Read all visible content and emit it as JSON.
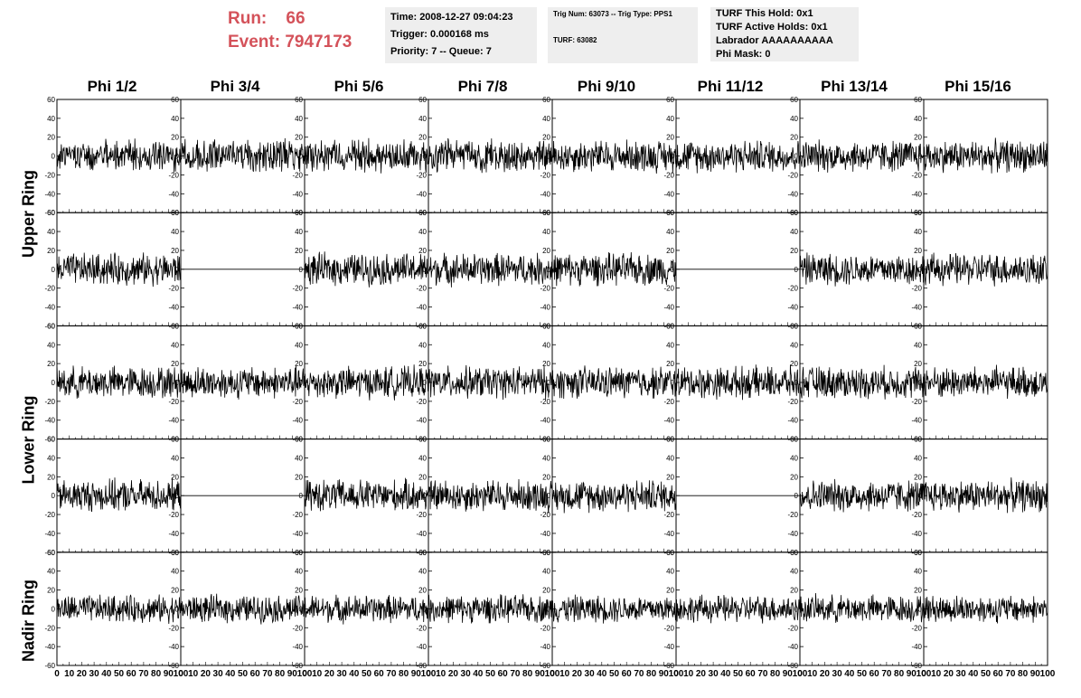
{
  "header": {
    "run_label": "Run:",
    "run_value": "66",
    "event_label": "Event:",
    "event_value": "7947173"
  },
  "info_panel_1": {
    "time": "Time: 2008-12-27 09:04:23",
    "trigger": "Trigger: 0.000168 ms",
    "priority": "Priority: 7 -- Queue: 7"
  },
  "info_panel_2": {
    "trig": "Trig Num: 63073 -- Trig Type: PPS1",
    "turf": "TURF: 63082"
  },
  "info_panel_3": {
    "hold": "TURF This Hold: 0x1",
    "active": "TURF Active Holds: 0x1",
    "labrador": "Labrador AAAAAAAAAA",
    "phimask": "Phi Mask: 0"
  },
  "columns": [
    "Phi 1/2",
    "Phi 3/4",
    "Phi 5/6",
    "Phi 7/8",
    "Phi 9/10",
    "Phi 11/12",
    "Phi 13/14",
    "Phi 15/16"
  ],
  "row_labels": [
    "Upper Ring",
    "Lower Ring",
    "Nadir Ring"
  ],
  "axes": {
    "y_ticks": [
      "60",
      "40",
      "20",
      "0",
      "-20",
      "-40",
      "-60"
    ],
    "x_ticks": [
      "0",
      "10",
      "20",
      "30",
      "40",
      "50",
      "60",
      "70",
      "80",
      "90",
      "100"
    ]
  },
  "chart_data": {
    "type": "line",
    "rows": 5,
    "cols": 8,
    "xlim": [
      0,
      100
    ],
    "ylim": [
      -60,
      60
    ],
    "flat_panels": [
      [
        1,
        1
      ],
      [
        1,
        5
      ],
      [
        3,
        1
      ],
      [
        3,
        5
      ]
    ],
    "amplitude_by_row": [
      14,
      14,
      14,
      14,
      12
    ],
    "note_rows": [
      "Upper Ring",
      "Upper Ring",
      "Lower Ring",
      "Lower Ring",
      "Nadir Ring"
    ]
  },
  "colors": {
    "title": "#d4525a",
    "panel_bg": "#eeeeee",
    "trace": "#000000"
  }
}
